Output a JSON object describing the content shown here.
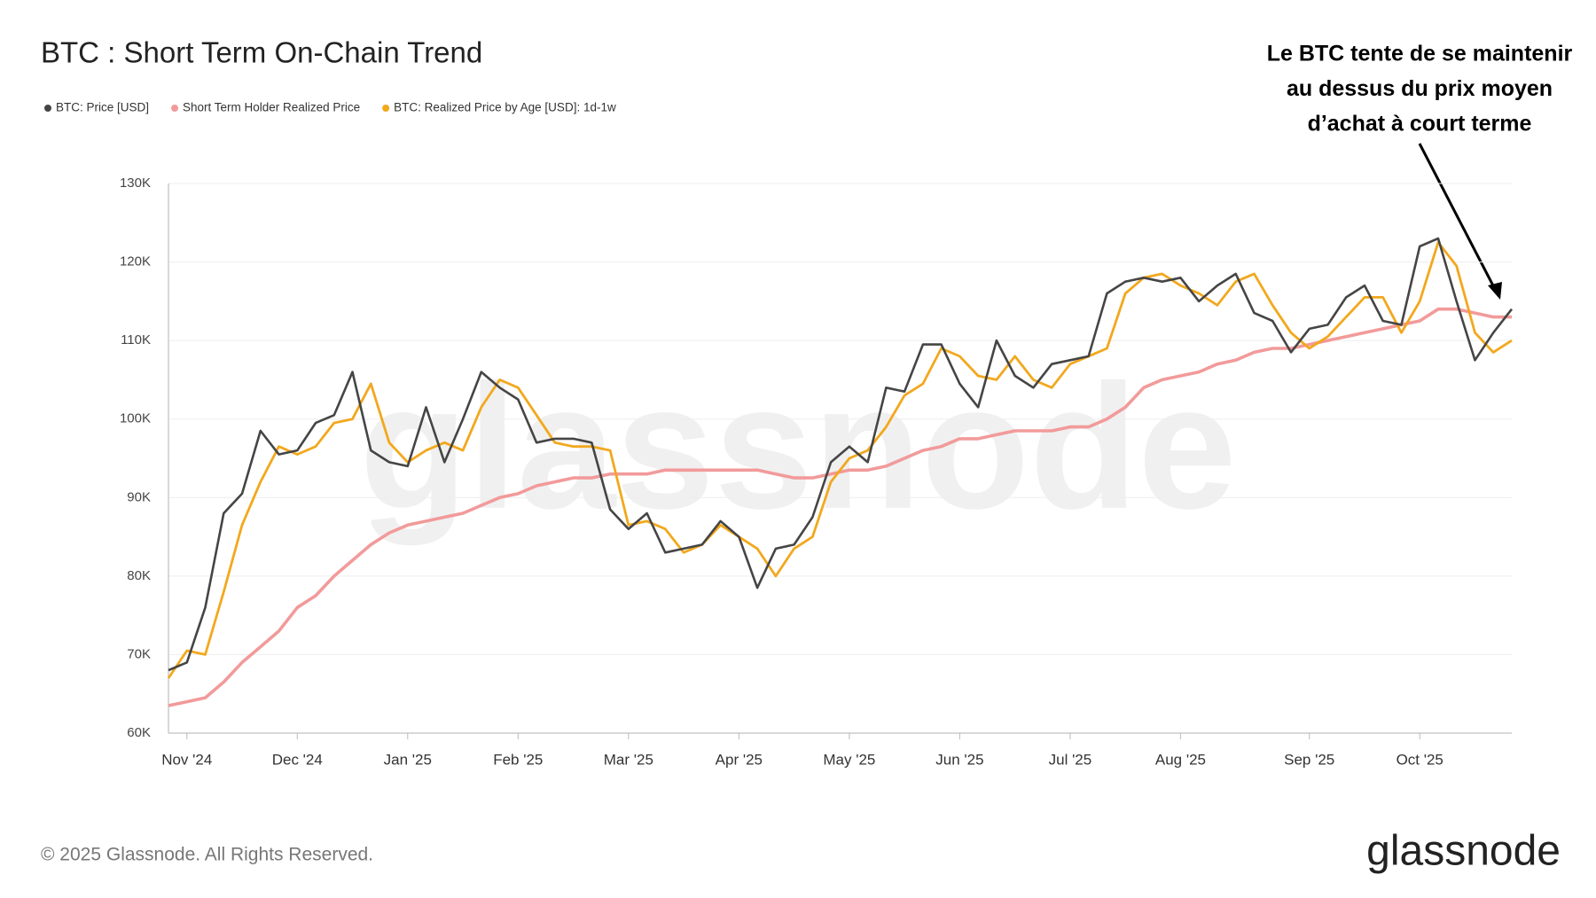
{
  "chart_data": {
    "type": "line",
    "title": "BTC : Short Term On-Chain Trend",
    "annotation": [
      "Le BTC tente de se maintenir",
      "au dessus du prix moyen",
      "d’achat à court terme"
    ],
    "categories": [
      null,
      "Nov '24",
      null,
      null,
      null,
      null,
      null,
      "Dec '24",
      null,
      null,
      null,
      null,
      null,
      "Jan '25",
      null,
      null,
      null,
      null,
      null,
      "Feb '25",
      null,
      null,
      null,
      null,
      null,
      "Mar '25",
      null,
      null,
      null,
      null,
      null,
      "Apr '25",
      null,
      null,
      null,
      null,
      null,
      "May '25",
      null,
      null,
      null,
      null,
      null,
      "Jun '25",
      null,
      null,
      null,
      null,
      null,
      "Jul '25",
      null,
      null,
      null,
      null,
      null,
      "Aug '25",
      null,
      null,
      null,
      null,
      null,
      null,
      "Sep '25",
      null,
      null,
      null,
      null,
      null,
      "Oct '25",
      null,
      null,
      null,
      null,
      null
    ],
    "series": [
      {
        "name": "BTC: Price [USD]",
        "color": "#454545",
        "values": [
          68000,
          69000,
          76000,
          88000,
          90500,
          98500,
          95500,
          96000,
          99500,
          100500,
          106000,
          96000,
          94500,
          94000,
          101500,
          94500,
          100000,
          106000,
          104000,
          102500,
          97000,
          97500,
          97500,
          97000,
          88500,
          86000,
          88000,
          83000,
          83500,
          84000,
          87000,
          85000,
          78500,
          83500,
          84000,
          87500,
          94500,
          96500,
          94500,
          104000,
          103500,
          109500,
          109500,
          104500,
          101500,
          110000,
          105500,
          104000,
          107000,
          107500,
          108000,
          116000,
          117500,
          118000,
          117500,
          118000,
          115000,
          117000,
          118500,
          113500,
          112500,
          108500,
          111500,
          112000,
          115500,
          117000,
          112500,
          112000,
          122000,
          123000,
          115000,
          107500,
          111000,
          114000
        ]
      },
      {
        "name": "Short Term Holder Realized Price",
        "color": "#f29a9a",
        "values": [
          63500,
          64000,
          64500,
          66500,
          69000,
          71000,
          73000,
          76000,
          77500,
          80000,
          82000,
          84000,
          85500,
          86500,
          87000,
          87500,
          88000,
          89000,
          90000,
          90500,
          91500,
          92000,
          92500,
          92500,
          93000,
          93000,
          93000,
          93500,
          93500,
          93500,
          93500,
          93500,
          93500,
          93000,
          92500,
          92500,
          93000,
          93500,
          93500,
          94000,
          95000,
          96000,
          96500,
          97500,
          97500,
          98000,
          98500,
          98500,
          98500,
          99000,
          99000,
          100000,
          101500,
          104000,
          105000,
          105500,
          106000,
          107000,
          107500,
          108500,
          109000,
          109000,
          109500,
          110000,
          110500,
          111000,
          111500,
          112000,
          112500,
          114000,
          114000,
          113500,
          113000,
          113000
        ]
      },
      {
        "name": "BTC: Realized Price by Age [USD]: 1d-1w",
        "color": "#f2a81d",
        "values": [
          67000,
          70500,
          70000,
          78000,
          86500,
          92000,
          96500,
          95500,
          96500,
          99500,
          100000,
          104500,
          97000,
          94500,
          96000,
          97000,
          96000,
          101500,
          105000,
          104000,
          100500,
          97000,
          96500,
          96500,
          96000,
          86500,
          87000,
          86000,
          83000,
          84000,
          86500,
          85000,
          83500,
          80000,
          83500,
          85000,
          92000,
          95000,
          96000,
          99000,
          103000,
          104500,
          109000,
          108000,
          105500,
          105000,
          108000,
          105000,
          104000,
          107000,
          108000,
          109000,
          116000,
          118000,
          118500,
          117000,
          116000,
          114500,
          117500,
          118500,
          114500,
          111000,
          109000,
          110500,
          113000,
          115500,
          115500,
          111000,
          115000,
          122500,
          119500,
          111000,
          108500,
          110000
        ]
      }
    ],
    "ylim": [
      60000,
      130000
    ],
    "yticks": [
      {
        "value": 60000,
        "label": "60K"
      },
      {
        "value": 70000,
        "label": "70K"
      },
      {
        "value": 80000,
        "label": "80K"
      },
      {
        "value": 90000,
        "label": "90K"
      },
      {
        "value": 100000,
        "label": "100K"
      },
      {
        "value": 110000,
        "label": "110K"
      },
      {
        "value": 120000,
        "label": "120K"
      },
      {
        "value": 130000,
        "label": "130K"
      }
    ],
    "grid": true
  },
  "footer": {
    "copyright": "© 2025 Glassnode. All Rights Reserved.",
    "brand": "glassnode"
  }
}
